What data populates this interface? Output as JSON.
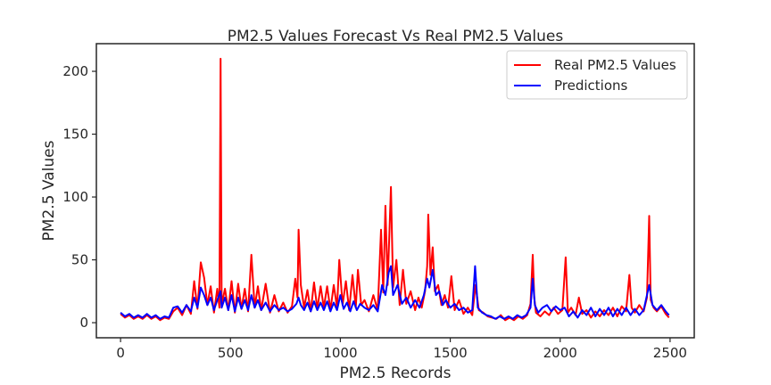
{
  "chart_data": {
    "type": "line",
    "title": "PM2.5 Values Forecast Vs Real PM2.5 Values",
    "xlabel": "PM2.5 Records",
    "ylabel": "PM2.5 Values",
    "xlim": [
      -110,
      2610
    ],
    "ylim": [
      -12,
      222
    ],
    "xticks": [
      0,
      500,
      1000,
      1500,
      2000,
      2500
    ],
    "yticks": [
      0,
      50,
      100,
      150,
      200
    ],
    "grid": false,
    "legend_position": "top-right",
    "series": [
      {
        "name": "Real PM2.5 Values",
        "color": "#ff0000",
        "points": [
          [
            0,
            7
          ],
          [
            20,
            4
          ],
          [
            40,
            6
          ],
          [
            60,
            3
          ],
          [
            80,
            5
          ],
          [
            100,
            3
          ],
          [
            120,
            6
          ],
          [
            140,
            3
          ],
          [
            160,
            5
          ],
          [
            180,
            2
          ],
          [
            200,
            4
          ],
          [
            220,
            3
          ],
          [
            240,
            9
          ],
          [
            260,
            12
          ],
          [
            280,
            6
          ],
          [
            300,
            14
          ],
          [
            320,
            7
          ],
          [
            335,
            33
          ],
          [
            350,
            11
          ],
          [
            365,
            48
          ],
          [
            380,
            36
          ],
          [
            395,
            14
          ],
          [
            410,
            29
          ],
          [
            425,
            8
          ],
          [
            440,
            27
          ],
          [
            450,
            12
          ],
          [
            455,
            210
          ],
          [
            460,
            14
          ],
          [
            475,
            27
          ],
          [
            490,
            10
          ],
          [
            505,
            33
          ],
          [
            520,
            8
          ],
          [
            535,
            31
          ],
          [
            550,
            11
          ],
          [
            565,
            27
          ],
          [
            580,
            9
          ],
          [
            595,
            54
          ],
          [
            610,
            12
          ],
          [
            625,
            29
          ],
          [
            640,
            10
          ],
          [
            660,
            31
          ],
          [
            680,
            8
          ],
          [
            700,
            22
          ],
          [
            720,
            9
          ],
          [
            740,
            16
          ],
          [
            760,
            8
          ],
          [
            780,
            13
          ],
          [
            795,
            35
          ],
          [
            805,
            20
          ],
          [
            810,
            74
          ],
          [
            820,
            30
          ],
          [
            835,
            12
          ],
          [
            850,
            26
          ],
          [
            865,
            9
          ],
          [
            880,
            32
          ],
          [
            895,
            11
          ],
          [
            910,
            29
          ],
          [
            925,
            12
          ],
          [
            940,
            29
          ],
          [
            955,
            10
          ],
          [
            970,
            30
          ],
          [
            985,
            12
          ],
          [
            995,
            50
          ],
          [
            1010,
            14
          ],
          [
            1025,
            33
          ],
          [
            1040,
            10
          ],
          [
            1055,
            38
          ],
          [
            1070,
            12
          ],
          [
            1080,
            42
          ],
          [
            1095,
            14
          ],
          [
            1110,
            18
          ],
          [
            1130,
            9
          ],
          [
            1150,
            22
          ],
          [
            1170,
            10
          ],
          [
            1185,
            74
          ],
          [
            1195,
            24
          ],
          [
            1205,
            93
          ],
          [
            1215,
            30
          ],
          [
            1230,
            108
          ],
          [
            1240,
            28
          ],
          [
            1255,
            50
          ],
          [
            1270,
            14
          ],
          [
            1285,
            42
          ],
          [
            1300,
            15
          ],
          [
            1320,
            25
          ],
          [
            1340,
            10
          ],
          [
            1355,
            20
          ],
          [
            1370,
            12
          ],
          [
            1385,
            25
          ],
          [
            1395,
            45
          ],
          [
            1400,
            86
          ],
          [
            1410,
            38
          ],
          [
            1420,
            60
          ],
          [
            1430,
            25
          ],
          [
            1445,
            30
          ],
          [
            1460,
            14
          ],
          [
            1475,
            22
          ],
          [
            1490,
            12
          ],
          [
            1505,
            37
          ],
          [
            1520,
            10
          ],
          [
            1540,
            18
          ],
          [
            1560,
            7
          ],
          [
            1580,
            12
          ],
          [
            1600,
            6
          ],
          [
            1615,
            30
          ],
          [
            1630,
            10
          ],
          [
            1650,
            8
          ],
          [
            1670,
            5
          ],
          [
            1690,
            4
          ],
          [
            1710,
            3
          ],
          [
            1730,
            6
          ],
          [
            1750,
            2
          ],
          [
            1770,
            4
          ],
          [
            1790,
            2
          ],
          [
            1810,
            5
          ],
          [
            1830,
            3
          ],
          [
            1850,
            6
          ],
          [
            1865,
            15
          ],
          [
            1875,
            54
          ],
          [
            1882,
            20
          ],
          [
            1890,
            8
          ],
          [
            1910,
            5
          ],
          [
            1930,
            9
          ],
          [
            1950,
            6
          ],
          [
            1970,
            12
          ],
          [
            1990,
            7
          ],
          [
            2010,
            10
          ],
          [
            2025,
            52
          ],
          [
            2035,
            8
          ],
          [
            2050,
            12
          ],
          [
            2070,
            6
          ],
          [
            2085,
            20
          ],
          [
            2100,
            7
          ],
          [
            2120,
            10
          ],
          [
            2140,
            4
          ],
          [
            2160,
            9
          ],
          [
            2180,
            5
          ],
          [
            2200,
            10
          ],
          [
            2220,
            6
          ],
          [
            2240,
            12
          ],
          [
            2260,
            5
          ],
          [
            2280,
            13
          ],
          [
            2300,
            9
          ],
          [
            2315,
            38
          ],
          [
            2325,
            12
          ],
          [
            2340,
            8
          ],
          [
            2360,
            14
          ],
          [
            2380,
            9
          ],
          [
            2395,
            20
          ],
          [
            2405,
            85
          ],
          [
            2412,
            18
          ],
          [
            2425,
            12
          ],
          [
            2440,
            9
          ],
          [
            2460,
            13
          ],
          [
            2480,
            7
          ],
          [
            2495,
            4
          ]
        ]
      },
      {
        "name": "Predictions",
        "color": "#0000ff",
        "points": [
          [
            0,
            8
          ],
          [
            20,
            5
          ],
          [
            40,
            7
          ],
          [
            60,
            4
          ],
          [
            80,
            6
          ],
          [
            100,
            4
          ],
          [
            120,
            7
          ],
          [
            140,
            4
          ],
          [
            160,
            6
          ],
          [
            180,
            3
          ],
          [
            200,
            5
          ],
          [
            220,
            4
          ],
          [
            240,
            12
          ],
          [
            260,
            13
          ],
          [
            280,
            8
          ],
          [
            300,
            14
          ],
          [
            320,
            9
          ],
          [
            335,
            20
          ],
          [
            350,
            12
          ],
          [
            365,
            28
          ],
          [
            380,
            22
          ],
          [
            395,
            14
          ],
          [
            410,
            20
          ],
          [
            425,
            10
          ],
          [
            440,
            18
          ],
          [
            455,
            25
          ],
          [
            460,
            12
          ],
          [
            475,
            20
          ],
          [
            490,
            10
          ],
          [
            505,
            22
          ],
          [
            520,
            9
          ],
          [
            535,
            20
          ],
          [
            550,
            11
          ],
          [
            565,
            18
          ],
          [
            580,
            10
          ],
          [
            595,
            22
          ],
          [
            610,
            12
          ],
          [
            625,
            18
          ],
          [
            640,
            10
          ],
          [
            660,
            16
          ],
          [
            680,
            9
          ],
          [
            700,
            14
          ],
          [
            720,
            10
          ],
          [
            740,
            12
          ],
          [
            760,
            9
          ],
          [
            780,
            11
          ],
          [
            800,
            15
          ],
          [
            810,
            20
          ],
          [
            820,
            14
          ],
          [
            835,
            10
          ],
          [
            850,
            16
          ],
          [
            865,
            9
          ],
          [
            880,
            17
          ],
          [
            895,
            10
          ],
          [
            910,
            16
          ],
          [
            925,
            10
          ],
          [
            940,
            17
          ],
          [
            955,
            9
          ],
          [
            970,
            16
          ],
          [
            985,
            10
          ],
          [
            1000,
            22
          ],
          [
            1015,
            11
          ],
          [
            1030,
            16
          ],
          [
            1045,
            9
          ],
          [
            1060,
            17
          ],
          [
            1075,
            10
          ],
          [
            1090,
            15
          ],
          [
            1110,
            12
          ],
          [
            1130,
            10
          ],
          [
            1150,
            14
          ],
          [
            1170,
            9
          ],
          [
            1190,
            30
          ],
          [
            1205,
            22
          ],
          [
            1220,
            40
          ],
          [
            1230,
            45
          ],
          [
            1240,
            22
          ],
          [
            1260,
            30
          ],
          [
            1280,
            15
          ],
          [
            1300,
            20
          ],
          [
            1320,
            12
          ],
          [
            1340,
            18
          ],
          [
            1360,
            12
          ],
          [
            1380,
            22
          ],
          [
            1395,
            35
          ],
          [
            1405,
            28
          ],
          [
            1420,
            42
          ],
          [
            1435,
            22
          ],
          [
            1450,
            25
          ],
          [
            1465,
            14
          ],
          [
            1480,
            18
          ],
          [
            1500,
            12
          ],
          [
            1520,
            15
          ],
          [
            1540,
            10
          ],
          [
            1560,
            12
          ],
          [
            1580,
            8
          ],
          [
            1600,
            10
          ],
          [
            1613,
            45
          ],
          [
            1625,
            12
          ],
          [
            1645,
            8
          ],
          [
            1665,
            6
          ],
          [
            1685,
            5
          ],
          [
            1705,
            3
          ],
          [
            1725,
            5
          ],
          [
            1745,
            3
          ],
          [
            1765,
            5
          ],
          [
            1785,
            3
          ],
          [
            1805,
            6
          ],
          [
            1825,
            4
          ],
          [
            1845,
            6
          ],
          [
            1865,
            12
          ],
          [
            1875,
            35
          ],
          [
            1885,
            14
          ],
          [
            1900,
            8
          ],
          [
            1920,
            12
          ],
          [
            1940,
            14
          ],
          [
            1960,
            9
          ],
          [
            1980,
            13
          ],
          [
            2000,
            10
          ],
          [
            2020,
            12
          ],
          [
            2040,
            5
          ],
          [
            2060,
            9
          ],
          [
            2080,
            4
          ],
          [
            2100,
            10
          ],
          [
            2120,
            6
          ],
          [
            2140,
            12
          ],
          [
            2160,
            5
          ],
          [
            2180,
            11
          ],
          [
            2200,
            6
          ],
          [
            2220,
            12
          ],
          [
            2240,
            5
          ],
          [
            2260,
            11
          ],
          [
            2280,
            6
          ],
          [
            2300,
            12
          ],
          [
            2320,
            6
          ],
          [
            2340,
            11
          ],
          [
            2360,
            6
          ],
          [
            2380,
            10
          ],
          [
            2395,
            22
          ],
          [
            2405,
            30
          ],
          [
            2420,
            14
          ],
          [
            2440,
            10
          ],
          [
            2460,
            14
          ],
          [
            2480,
            9
          ],
          [
            2495,
            6
          ]
        ]
      }
    ]
  }
}
